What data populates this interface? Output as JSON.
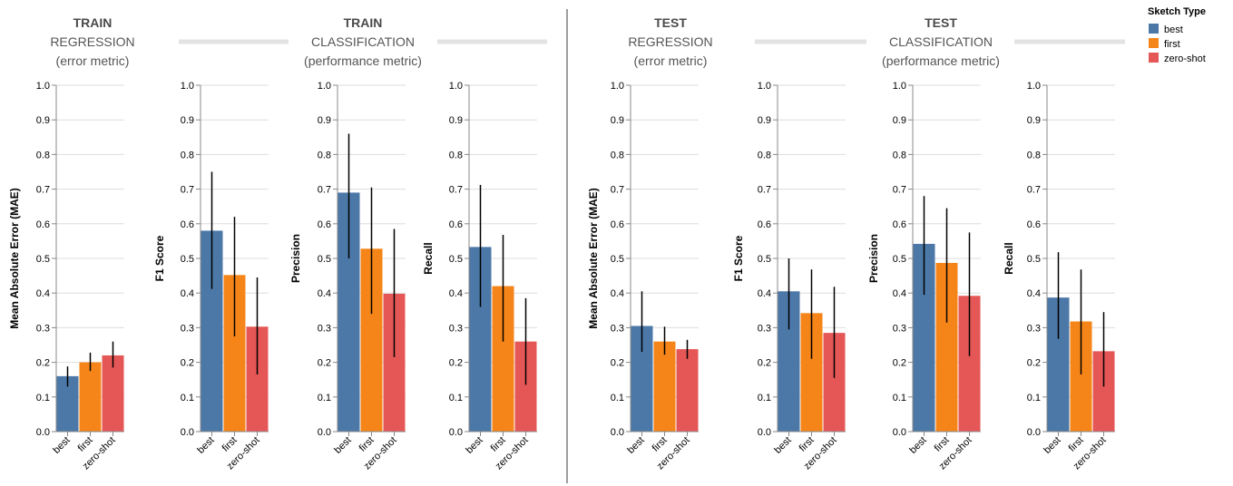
{
  "sections": [
    {
      "line1": "TRAIN",
      "line2": "REGRESSION",
      "line3": "(error metric)"
    },
    {
      "line1": "TRAIN",
      "line2": "CLASSIFICATION",
      "line3": "(performance metric)"
    },
    {
      "line1": "TEST",
      "line2": "REGRESSION",
      "line3": "(error metric)"
    },
    {
      "line1": "TEST",
      "line2": "CLASSIFICATION",
      "line3": "(performance metric)"
    }
  ],
  "legend": {
    "title": "Sketch Type",
    "items": [
      {
        "label": "best",
        "color": "#4c78a8"
      },
      {
        "label": "first",
        "color": "#f58518"
      },
      {
        "label": "zero-shot",
        "color": "#e45756"
      }
    ]
  },
  "chart_data": [
    {
      "type": "bar",
      "group": "TRAIN",
      "ylabel": "Mean Absolute Error (MAE)",
      "categories": [
        "best",
        "first",
        "zero-shot"
      ],
      "values": [
        0.16,
        0.2,
        0.22
      ],
      "error_low": [
        0.13,
        0.175,
        0.185
      ],
      "error_high": [
        0.188,
        0.228,
        0.26
      ],
      "ylim": [
        0,
        1
      ],
      "yticks": [
        "0.0",
        "0.1",
        "0.2",
        "0.3",
        "0.4",
        "0.5",
        "0.6",
        "0.7",
        "0.8",
        "0.9",
        "1.0"
      ]
    },
    {
      "type": "bar",
      "group": "TRAIN",
      "ylabel": "F1 Score",
      "categories": [
        "best",
        "first",
        "zero-shot"
      ],
      "values": [
        0.58,
        0.452,
        0.303
      ],
      "error_low": [
        0.412,
        0.275,
        0.165
      ],
      "error_high": [
        0.75,
        0.62,
        0.445
      ],
      "ylim": [
        0,
        1
      ],
      "yticks": [
        "0.0",
        "0.1",
        "0.2",
        "0.3",
        "0.4",
        "0.5",
        "0.6",
        "0.7",
        "0.8",
        "0.9",
        "1.0"
      ]
    },
    {
      "type": "bar",
      "group": "TRAIN",
      "ylabel": "Precision",
      "categories": [
        "best",
        "first",
        "zero-shot"
      ],
      "values": [
        0.69,
        0.528,
        0.398
      ],
      "error_low": [
        0.5,
        0.34,
        0.215
      ],
      "error_high": [
        0.86,
        0.705,
        0.585
      ],
      "ylim": [
        0,
        1
      ],
      "yticks": [
        "0.0",
        "0.1",
        "0.2",
        "0.3",
        "0.4",
        "0.5",
        "0.6",
        "0.7",
        "0.8",
        "0.9",
        "1.0"
      ]
    },
    {
      "type": "bar",
      "group": "TRAIN",
      "ylabel": "Recall",
      "categories": [
        "best",
        "first",
        "zero-shot"
      ],
      "values": [
        0.533,
        0.42,
        0.26
      ],
      "error_low": [
        0.36,
        0.26,
        0.135
      ],
      "error_high": [
        0.712,
        0.568,
        0.385
      ],
      "ylim": [
        0,
        1
      ],
      "yticks": [
        "0.0",
        "0.1",
        "0.2",
        "0.3",
        "0.4",
        "0.5",
        "0.6",
        "0.7",
        "0.8",
        "0.9",
        "1.0"
      ]
    },
    {
      "type": "bar",
      "group": "TEST",
      "ylabel": "Mean Absolute Error (MAE)",
      "categories": [
        "best",
        "first",
        "zero-shot"
      ],
      "values": [
        0.305,
        0.26,
        0.238
      ],
      "error_low": [
        0.23,
        0.222,
        0.21
      ],
      "error_high": [
        0.405,
        0.303,
        0.265
      ],
      "ylim": [
        0,
        1
      ],
      "yticks": [
        "0.0",
        "0.1",
        "0.2",
        "0.3",
        "0.4",
        "0.5",
        "0.6",
        "0.7",
        "0.8",
        "0.9",
        "1.0"
      ]
    },
    {
      "type": "bar",
      "group": "TEST",
      "ylabel": "F1 Score",
      "categories": [
        "best",
        "first",
        "zero-shot"
      ],
      "values": [
        0.405,
        0.342,
        0.285
      ],
      "error_low": [
        0.295,
        0.21,
        0.155
      ],
      "error_high": [
        0.5,
        0.468,
        0.418
      ],
      "ylim": [
        0,
        1
      ],
      "yticks": [
        "0.0",
        "0.1",
        "0.2",
        "0.3",
        "0.4",
        "0.5",
        "0.6",
        "0.7",
        "0.8",
        "0.9",
        "1.0"
      ]
    },
    {
      "type": "bar",
      "group": "TEST",
      "ylabel": "Precision",
      "categories": [
        "best",
        "first",
        "zero-shot"
      ],
      "values": [
        0.542,
        0.487,
        0.392
      ],
      "error_low": [
        0.395,
        0.315,
        0.218
      ],
      "error_high": [
        0.68,
        0.645,
        0.575
      ],
      "ylim": [
        0,
        1
      ],
      "yticks": [
        "0.0",
        "0.1",
        "0.2",
        "0.3",
        "0.4",
        "0.5",
        "0.6",
        "0.7",
        "0.8",
        "0.9",
        "1.0"
      ]
    },
    {
      "type": "bar",
      "group": "TEST",
      "ylabel": "Recall",
      "categories": [
        "best",
        "first",
        "zero-shot"
      ],
      "values": [
        0.387,
        0.318,
        0.232
      ],
      "error_low": [
        0.268,
        0.165,
        0.13
      ],
      "error_high": [
        0.518,
        0.468,
        0.345
      ],
      "ylim": [
        0,
        1
      ],
      "yticks": [
        "0.0",
        "0.1",
        "0.2",
        "0.3",
        "0.4",
        "0.5",
        "0.6",
        "0.7",
        "0.8",
        "0.9",
        "1.0"
      ]
    }
  ]
}
